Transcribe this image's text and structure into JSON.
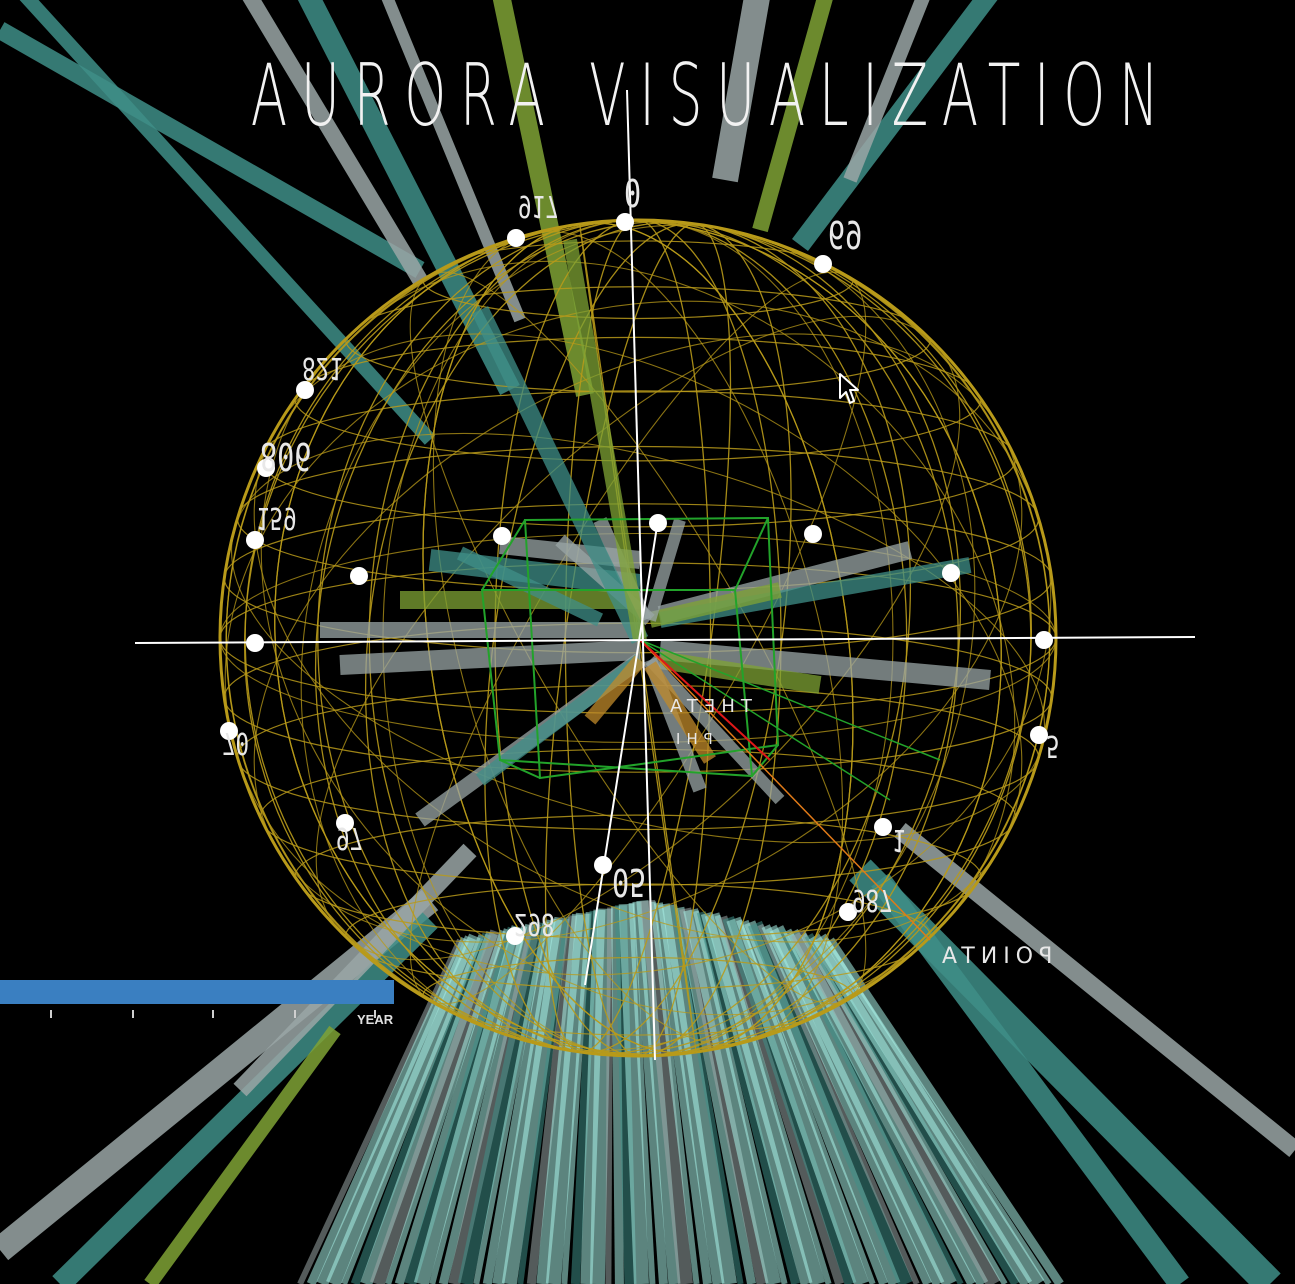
{
  "title": "AURORA VISUALIZATION",
  "sphere_labels": {
    "top": "0",
    "upper_left": "917",
    "upper_right": "69",
    "left_high": "821",
    "left_mid": "806",
    "left_low": "159",
    "left_bottom": "70",
    "lower_left": "97",
    "right_lower": "5",
    "lower_right": "1",
    "bottom": "05",
    "bottom_left": "298",
    "bottom_right": "987"
  },
  "axis_labels": {
    "theta": "THETA",
    "phi": "PHI",
    "point": "POINTA"
  },
  "timeline": {
    "label": "YEAR",
    "tick_count": 5
  },
  "colors": {
    "sphere": "#b89a1a",
    "box": "#22a32a",
    "axis": "#ffffff",
    "ray_teal": "#3f8f88",
    "ray_green": "#7fa335",
    "ray_gray": "#9aa6a6",
    "ray_cyan": "#a8f0e6",
    "timeline": "#3a7fc1"
  },
  "icons": {
    "cursor": "mouse-pointer-icon"
  }
}
